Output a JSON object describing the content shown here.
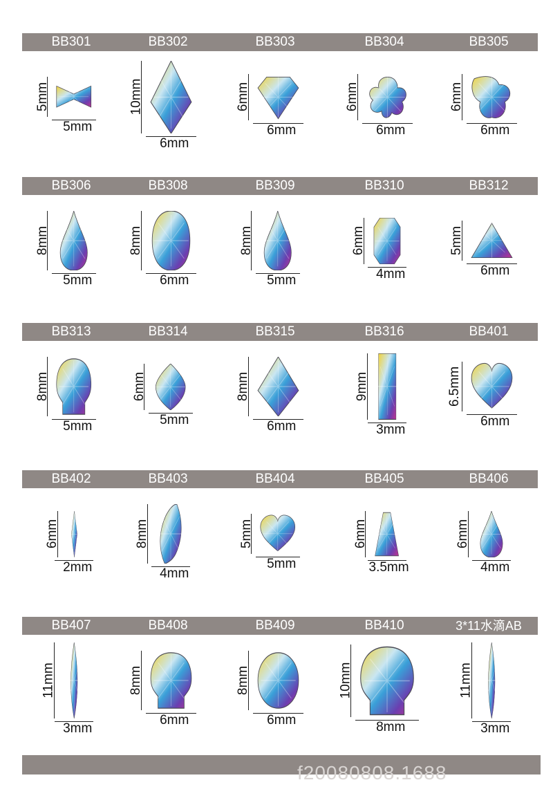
{
  "products": [
    {
      "code": "BB301",
      "h": "5mm",
      "w": "5mm",
      "shape": "bow"
    },
    {
      "code": "BB302",
      "h": "10mm",
      "w": "6mm",
      "shape": "kite"
    },
    {
      "code": "BB303",
      "h": "6mm",
      "w": "6mm",
      "shape": "diamond"
    },
    {
      "code": "BB304",
      "h": "6mm",
      "w": "6mm",
      "shape": "flower"
    },
    {
      "code": "BB305",
      "h": "6mm",
      "w": "6mm",
      "shape": "trefoil"
    },
    {
      "code": "BB306",
      "h": "8mm",
      "w": "5mm",
      "shape": "teardrop"
    },
    {
      "code": "BB308",
      "h": "8mm",
      "w": "6mm",
      "shape": "oval"
    },
    {
      "code": "BB309",
      "h": "8mm",
      "w": "5mm",
      "shape": "teardrop"
    },
    {
      "code": "BB310",
      "h": "6mm",
      "w": "4mm",
      "shape": "octagon"
    },
    {
      "code": "BB312",
      "h": "5mm",
      "w": "6mm",
      "shape": "triangle"
    },
    {
      "code": "BB313",
      "h": "8mm",
      "w": "5mm",
      "shape": "skull"
    },
    {
      "code": "BB314",
      "h": "6mm",
      "w": "5mm",
      "shape": "marquise"
    },
    {
      "code": "BB315",
      "h": "8mm",
      "w": "6mm",
      "shape": "kite"
    },
    {
      "code": "BB316",
      "h": "9mm",
      "w": "3mm",
      "shape": "baguette"
    },
    {
      "code": "BB401",
      "h": "6.5mm",
      "w": "6mm",
      "shape": "heart"
    },
    {
      "code": "BB402",
      "h": "6mm",
      "w": "2mm",
      "shape": "needle"
    },
    {
      "code": "BB403",
      "h": "8mm",
      "w": "4mm",
      "shape": "leaf"
    },
    {
      "code": "BB404",
      "h": "5mm",
      "w": "5mm",
      "shape": "heart"
    },
    {
      "code": "BB405",
      "h": "6mm",
      "w": "3.5mm",
      "shape": "trapezoid"
    },
    {
      "code": "BB406",
      "h": "6mm",
      "w": "4mm",
      "shape": "teardrop"
    },
    {
      "code": "BB407",
      "h": "11mm",
      "w": "3mm",
      "shape": "navette"
    },
    {
      "code": "BB408",
      "h": "8mm",
      "w": "6mm",
      "shape": "skull"
    },
    {
      "code": "BB409",
      "h": "8mm",
      "w": "6mm",
      "shape": "round"
    },
    {
      "code": "BB410",
      "h": "10mm",
      "w": "8mm",
      "shape": "skull"
    },
    {
      "code": "3*11水滴AB",
      "h": "11mm",
      "w": "3mm",
      "shape": "navette"
    }
  ],
  "footer": {
    "watermark": "f20080808.1688"
  },
  "colors": {
    "band": "#8f8885",
    "gem_ab": [
      "#f1d23a",
      "#3aa0d8",
      "#c2318f",
      "#6a3fb0",
      "#c9e6f2"
    ]
  }
}
